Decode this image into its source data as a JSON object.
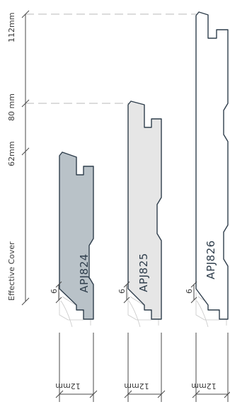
{
  "dimensions": {
    "height_112": "112mm",
    "height_80": "80 mm",
    "height_62": "62mm",
    "effective_cover": "Effective Cover",
    "overlap": "6",
    "thickness": "12mm"
  },
  "profiles": [
    {
      "code": "APJ824",
      "fill": "#b9c2c8"
    },
    {
      "code": "APJ825",
      "fill": "#e6e6e6"
    },
    {
      "code": "APJ826",
      "fill": "#ffffff"
    }
  ],
  "colors": {
    "outline": "#2f3e4c",
    "dimension": "#4a4a4a",
    "leader": "#b9b9b9"
  }
}
